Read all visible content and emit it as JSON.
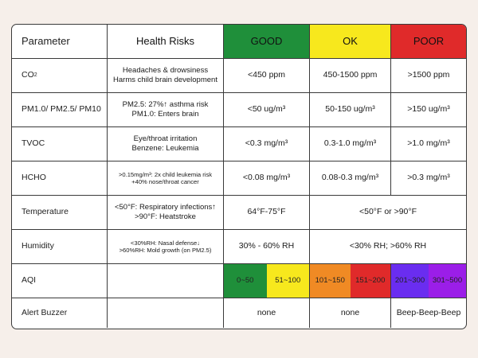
{
  "header": {
    "parameter": "Parameter",
    "health_risks": "Health Risks",
    "good": "GOOD",
    "ok": "OK",
    "poor": "POOR"
  },
  "colors": {
    "good": "#1f8f3a",
    "ok": "#f7e81d",
    "poor": "#e02a2a",
    "aqi_0_50": "#1f8f3a",
    "aqi_51_100": "#f7e81d",
    "aqi_101_150": "#f08a24",
    "aqi_151_200": "#e02a2a",
    "aqi_201_300": "#6a2df0",
    "aqi_301_500": "#9b1ee8"
  },
  "rows": {
    "co2": {
      "param_main": "CO",
      "param_sub": "2",
      "risk_1": "Headaches & drowsiness",
      "risk_2": "Harms child brain development",
      "good": "<450 ppm",
      "ok": "450-1500 ppm",
      "poor": ">1500 ppm"
    },
    "pm": {
      "param": "PM1.0/ PM2.5/ PM10",
      "risk_1": "PM2.5: 27%↑ asthma risk",
      "risk_2": "PM1.0: Enters brain",
      "good": "<50 ug/m³",
      "ok": "50-150 ug/m³",
      "poor": ">150 ug/m³"
    },
    "tvoc": {
      "param": "TVOC",
      "risk_1": "Eye/throat irritation",
      "risk_2": "Benzene: Leukemia",
      "good": "<0.3 mg/m³",
      "ok": "0.3-1.0 mg/m³",
      "poor": ">1.0 mg/m³"
    },
    "hcho": {
      "param": "HCHO",
      "risk_1": ">0.15mg/m³: 2x child leukemia risk",
      "risk_2": "+40% nose/throat cancer",
      "good": "<0.08 mg/m³",
      "ok": "0.08-0.3 mg/m³",
      "poor": ">0.3 mg/m³"
    },
    "temperature": {
      "param": "Temperature",
      "risk_1": "<50°F: Respiratory infections↑",
      "risk_2": ">90°F: Heatstroke",
      "good": "64°F-75°F",
      "ok_poor": "<50°F or >90°F"
    },
    "humidity": {
      "param": "Humidity",
      "risk_1": "<30%RH: Nasal defense↓",
      "risk_2": ">60%RH: Mold growth (on PM2.5)",
      "good": "30% - 60% RH",
      "ok_poor": "<30% RH; >60% RH"
    },
    "aqi": {
      "param": "AQI",
      "segments": [
        "0~50",
        "51~100",
        "101~150",
        "151~200",
        "201~300",
        "301~500"
      ]
    },
    "buzzer": {
      "param": "Alert Buzzer",
      "good": "none",
      "ok": "none",
      "poor": "Beep-Beep-Beep"
    }
  }
}
